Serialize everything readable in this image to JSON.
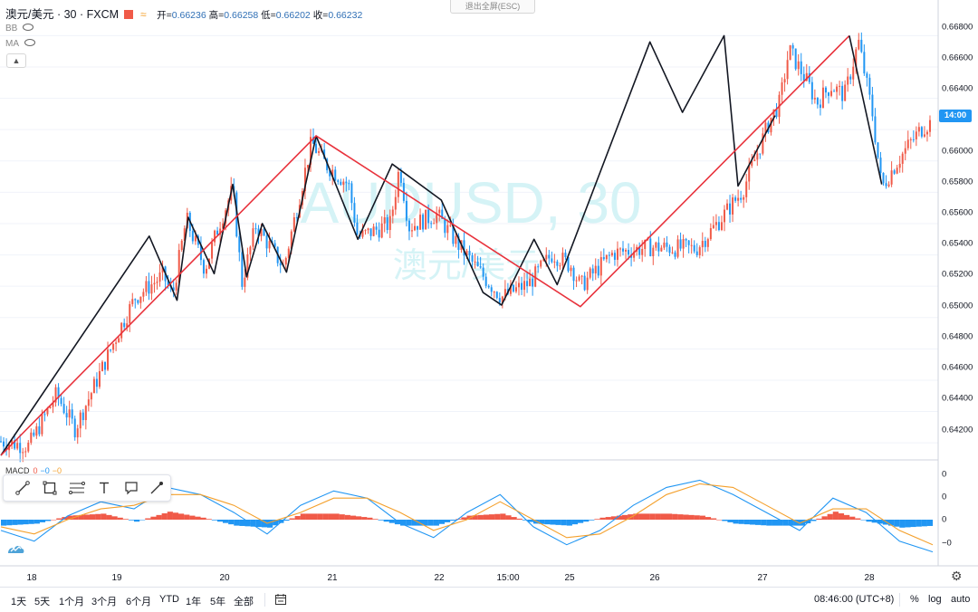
{
  "header": {
    "symbol": "澳元/美元 · 30 · FXCM",
    "open_label": "开=",
    "open": "0.66236",
    "high_label": "高=",
    "high": "0.66258",
    "low_label": "低=",
    "low": "0.66202",
    "close_label": "收=",
    "close": "0.66232",
    "wave_icon": "wave-icon"
  },
  "indicators": [
    {
      "name": "BB"
    },
    {
      "name": "MA"
    }
  ],
  "collapse_arrow": "▲",
  "exit_fullscreen": "退出全屏(ESC)",
  "watermark": {
    "line1": "AUDUSD, 30",
    "line2": "澳元/美元"
  },
  "price_axis": {
    "ticks": [
      "0.66800",
      "0.66600",
      "0.66400",
      "0.66000",
      "0.65800",
      "0.65600",
      "0.65400",
      "0.65200",
      "0.65000",
      "0.64800",
      "0.64600",
      "0.64400",
      "0.64200"
    ],
    "current_tag": "14:00"
  },
  "macd": {
    "label": "MACD",
    "v1": "0",
    "v2": "−0",
    "v3": "−0",
    "axis_ticks": [
      "0",
      "0",
      "0",
      "−0"
    ]
  },
  "time_axis": {
    "labels": [
      "18",
      "19",
      "20",
      "21",
      "22",
      "15:00",
      "25",
      "26",
      "27",
      "28"
    ]
  },
  "drawing_tools": [
    {
      "name": "trendline-icon"
    },
    {
      "name": "rectangle-icon"
    },
    {
      "name": "fib-icon"
    },
    {
      "name": "text-icon"
    },
    {
      "name": "callout-icon"
    },
    {
      "name": "brush-icon"
    }
  ],
  "bottom_bar": {
    "ranges": [
      "1天",
      "5天",
      "1个月",
      "3个月",
      "6个月",
      "YTD",
      "1年",
      "5年",
      "全部"
    ],
    "clock": "08:46:00 (UTC+8)",
    "percent": "%",
    "log": "log",
    "auto": "auto"
  },
  "colors": {
    "up": "#f05a48",
    "down": "#2196f3",
    "zigzag_major": "#e8323c",
    "zigzag_minor": "#131722",
    "macd_line": "#2196f3",
    "signal_line": "#f4a02c",
    "watermark": "#d5f3f6"
  },
  "chart_data": {
    "type": "candlestick",
    "symbol": "AUDUSD",
    "timeframe": "30",
    "ylim": [
      0.6412,
      0.6686
    ],
    "price_path": [
      [
        17.6,
        0.6421
      ],
      [
        17.9,
        0.6418
      ],
      [
        18.2,
        0.6451
      ],
      [
        18.4,
        0.6429
      ],
      [
        18.9,
        0.6495
      ],
      [
        19.05,
        0.6513
      ],
      [
        19.35,
        0.6527
      ],
      [
        19.45,
        0.6514
      ],
      [
        19.6,
        0.6563
      ],
      [
        19.8,
        0.6531
      ],
      [
        19.95,
        0.6559
      ],
      [
        20.1,
        0.6582
      ],
      [
        20.2,
        0.6522
      ],
      [
        20.35,
        0.6559
      ],
      [
        20.65,
        0.6532
      ],
      [
        20.95,
        0.6612
      ],
      [
        21.1,
        0.6598
      ],
      [
        21.35,
        0.6585
      ],
      [
        21.45,
        0.6551
      ],
      [
        21.8,
        0.656
      ],
      [
        21.9,
        0.6597
      ],
      [
        22.0,
        0.6558
      ],
      [
        22.3,
        0.6566
      ],
      [
        22.5,
        0.6549
      ],
      [
        22.75,
        0.653
      ],
      [
        23.0,
        0.6513
      ],
      [
        23.3,
        0.6522
      ],
      [
        23.55,
        0.6541
      ],
      [
        23.75,
        0.6533
      ],
      [
        23.85,
        0.652
      ],
      [
        24.2,
        0.6541
      ],
      [
        24.6,
        0.6545
      ],
      [
        25.1,
        0.6544
      ],
      [
        25.35,
        0.6562
      ],
      [
        25.6,
        0.6581
      ],
      [
        25.9,
        0.6627
      ],
      [
        26.0,
        0.6637
      ],
      [
        26.1,
        0.6671
      ],
      [
        26.3,
        0.665
      ],
      [
        26.4,
        0.6637
      ],
      [
        26.55,
        0.6648
      ],
      [
        26.7,
        0.6642
      ],
      [
        26.85,
        0.6676
      ],
      [
        27.0,
        0.663
      ],
      [
        27.1,
        0.6583
      ],
      [
        27.25,
        0.6598
      ],
      [
        27.4,
        0.6611
      ],
      [
        27.55,
        0.6622
      ],
      [
        27.65,
        0.6625
      ]
    ],
    "zigzag_major": [
      [
        17.6,
        0.6412
      ],
      [
        21.0,
        0.6616
      ],
      [
        23.85,
        0.6507
      ],
      [
        26.75,
        0.668
      ]
    ],
    "zigzag_major_tail": [
      [
        23.85,
        0.6507
      ],
      [
        26.75,
        0.668
      ]
    ],
    "zigzag_minor": [
      [
        17.6,
        0.6412
      ],
      [
        19.2,
        0.6552
      ],
      [
        19.5,
        0.6511
      ],
      [
        19.62,
        0.6564
      ],
      [
        19.9,
        0.6528
      ],
      [
        20.1,
        0.6585
      ],
      [
        20.25,
        0.6526
      ],
      [
        20.42,
        0.656
      ],
      [
        20.68,
        0.6529
      ],
      [
        21.0,
        0.6616
      ],
      [
        21.45,
        0.655
      ],
      [
        21.82,
        0.6598
      ],
      [
        22.35,
        0.6575
      ],
      [
        22.8,
        0.6516
      ],
      [
        23.0,
        0.6508
      ],
      [
        23.35,
        0.655
      ],
      [
        23.6,
        0.6521
      ],
      [
        24.6,
        0.6676
      ],
      [
        24.95,
        0.6631
      ],
      [
        25.4,
        0.668
      ],
      [
        25.55,
        0.6584
      ],
      [
        25.95,
        0.6629
      ]
    ],
    "macd_line": [
      -0.3,
      -0.6,
      0.1,
      0.5,
      0.3,
      0.9,
      0.7,
      0.2,
      -0.4,
      0.4,
      0.8,
      0.6,
      -0.1,
      -0.5,
      0.2,
      0.7,
      -0.2,
      -0.7,
      -0.3,
      0.4,
      0.9,
      1.1,
      0.7,
      0.2,
      -0.3,
      0.6,
      0.2,
      -0.6,
      -0.9
    ],
    "signal_line": [
      -0.2,
      -0.4,
      0.0,
      0.3,
      0.4,
      0.7,
      0.7,
      0.4,
      -0.1,
      0.2,
      0.6,
      0.6,
      0.2,
      -0.3,
      0.0,
      0.5,
      0.0,
      -0.5,
      -0.4,
      0.1,
      0.7,
      1.0,
      0.9,
      0.4,
      -0.1,
      0.3,
      0.3,
      -0.3,
      -0.7
    ],
    "histogram": [
      -0.3,
      -0.2,
      0.2,
      0.3,
      -0.1,
      0.4,
      0.1,
      -0.3,
      -0.4,
      0.3,
      0.3,
      0.1,
      -0.3,
      -0.3,
      0.2,
      0.3,
      -0.2,
      -0.3,
      0.1,
      0.3,
      0.3,
      0.2,
      -0.2,
      -0.3,
      -0.3,
      0.4,
      -0.1,
      -0.4,
      -0.3
    ]
  }
}
